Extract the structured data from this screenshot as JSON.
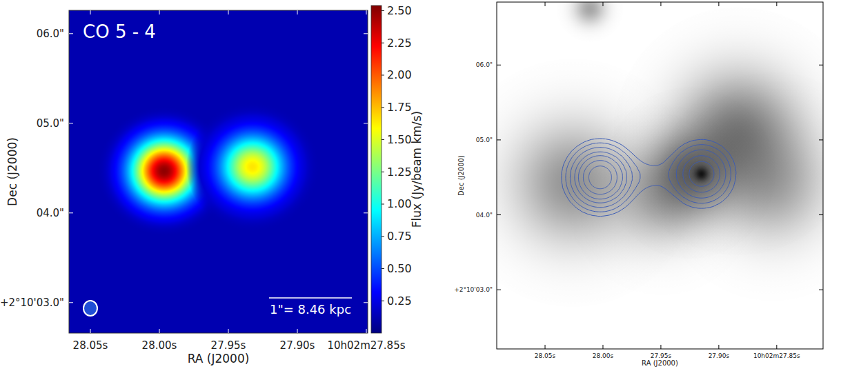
{
  "chart_data": [
    {
      "type": "heatmap",
      "title": "CO 5 - 4",
      "xlabel": "RA (J2000)",
      "ylabel": "Dec (J2000)",
      "xlim": [
        28.0655,
        27.849
      ],
      "xticks": [
        {
          "value": 28.05,
          "label": "28.05s"
        },
        {
          "value": 28.0,
          "label": "28.00s"
        },
        {
          "value": 27.95,
          "label": "27.95s"
        },
        {
          "value": 27.9,
          "label": "27.90s"
        },
        {
          "value": 27.85,
          "label": "10h02m27.85s"
        }
      ],
      "ylim": [
        2.66,
        6.26
      ],
      "yticks": [
        {
          "value": 3,
          "label": "+2°10'03.0\""
        },
        {
          "value": 4,
          "label": "04.0\""
        },
        {
          "value": 5,
          "label": "05.0\""
        },
        {
          "value": 6,
          "label": "06.0\""
        }
      ],
      "colorbar": {
        "label": "Flux (Jy/beam km/s)",
        "lim": [
          0,
          2.54
        ],
        "ticks": [
          0.25,
          {
            "value": 0.5,
            "label": "0.50"
          },
          0.75,
          {
            "value": 1.0,
            "label": "1.00"
          },
          1.25,
          {
            "value": 1.5,
            "label": "1.50"
          },
          1.75,
          {
            "value": 2.0,
            "label": "2.00"
          },
          2.25,
          {
            "value": 2.5,
            "label": "2.50"
          }
        ]
      },
      "background": 0.12,
      "components": [
        {
          "x": 27.9965,
          "y": 4.468,
          "peak": 2.5,
          "fwhm": 0.58
        },
        {
          "x": 27.9325,
          "y": 4.514,
          "peak": 1.65,
          "fwhm": 0.58
        }
      ],
      "annotations": [
        "1\"= 8.46 kpc"
      ]
    },
    {
      "type": "contour",
      "xlabel": "RA (J2000)",
      "ylabel": "Dec (J2000)",
      "xlim": [
        28.0917,
        27.81
      ],
      "xticks": [
        {
          "value": 28.05,
          "label": "28.05s"
        },
        {
          "value": 28.0,
          "label": "28.00s"
        },
        {
          "value": 27.95,
          "label": "27.95s"
        },
        {
          "value": 27.9,
          "label": "27.90s"
        },
        {
          "value": 27.85,
          "label": "10h02m27.85s"
        }
      ],
      "ylim": [
        2.21,
        6.84
      ],
      "yticks": [
        {
          "value": 3,
          "label": "+2°10'03.0\""
        },
        {
          "value": 4,
          "label": "04.0\""
        },
        {
          "value": 5,
          "label": "05.0\""
        },
        {
          "value": 6,
          "label": "06.0\""
        }
      ],
      "color": "#3b5bb5",
      "levels": [
        0.35,
        0.55,
        0.8,
        1.1,
        1.4,
        1.8,
        2.2
      ],
      "components": [
        {
          "x": 28.0024,
          "y": 4.5,
          "peak": 2.6,
          "fwhm": 0.61
        },
        {
          "x": 27.9149,
          "y": 4.546,
          "peak": 1.7,
          "fwhm": 0.61
        },
        {
          "x": 27.9587,
          "y": 4.523,
          "peak": 0.3,
          "fwhm": 0.45
        }
      ],
      "background_sources": [
        {
          "x": 28.0262,
          "y": 4.426,
          "amplitude": 0.42,
          "fwhm": 1.3
        },
        {
          "x": 27.925,
          "y": 4.56,
          "amplitude": 0.5,
          "fwhm": 0.9
        },
        {
          "x": 27.8834,
          "y": 5.116,
          "amplitude": 0.5,
          "fwhm": 1.3
        },
        {
          "x": 27.8536,
          "y": 4.38,
          "amplitude": 0.32,
          "fwhm": 1.2
        },
        {
          "x": 28.0113,
          "y": 6.754,
          "amplitude": 0.35,
          "fwhm": 0.35
        },
        {
          "x": 27.949,
          "y": 4.2,
          "amplitude": 0.28,
          "fwhm": 1.0
        },
        {
          "x": 27.9149,
          "y": 4.546,
          "amplitude": 0.8,
          "fwhm": 0.15
        }
      ]
    }
  ]
}
